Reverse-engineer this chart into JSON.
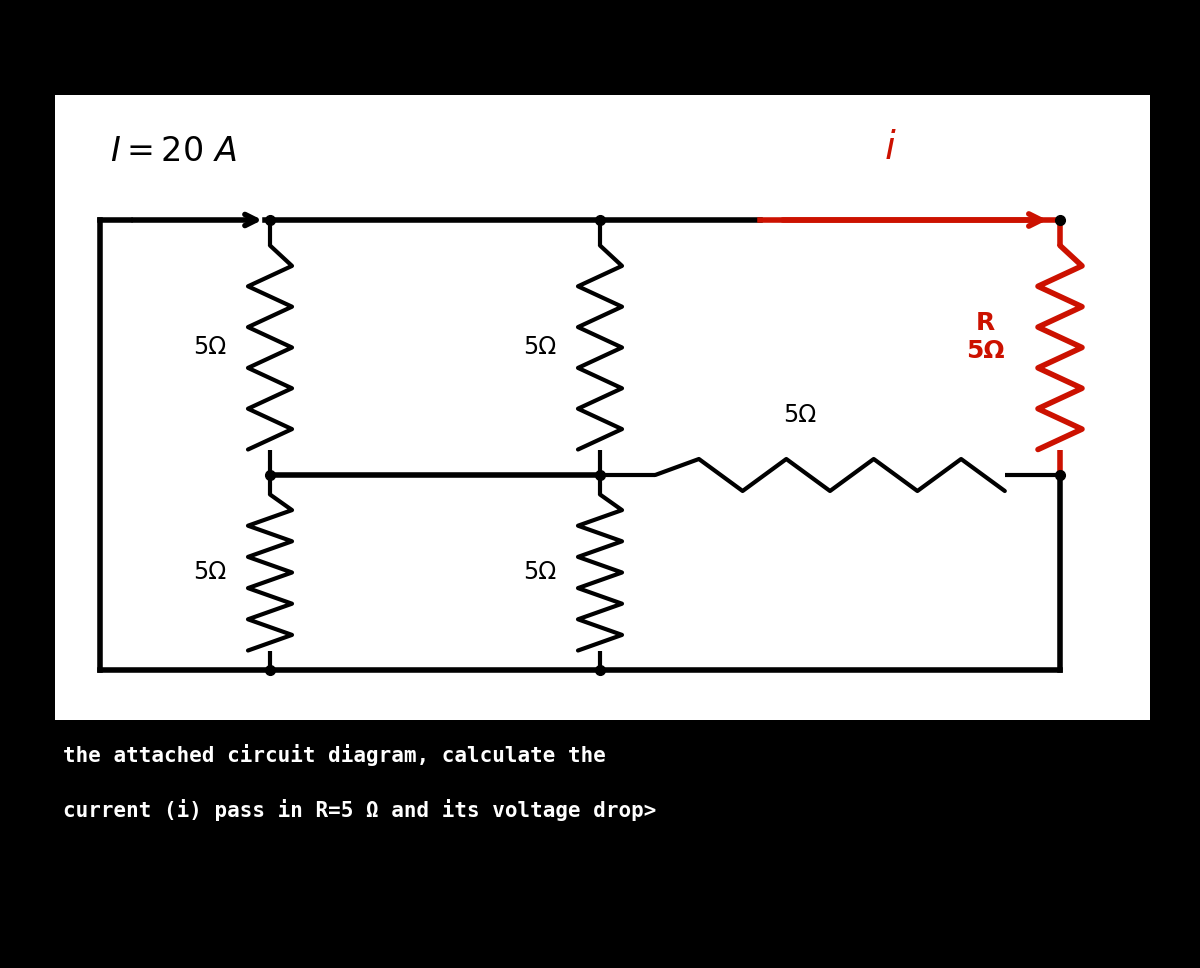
{
  "bg_color": "#000000",
  "circuit_bg": "#ffffff",
  "wire_color": "#000000",
  "resistor_color": "#000000",
  "red_color": "#cc1100",
  "text_color": "#000000",
  "label_I": "I=20 A",
  "label_i": "i",
  "resistor_label": "5Ω",
  "bottom_text1": "the attached circuit diagram, calculate the",
  "bottom_text2": "current (i) pass in R=5 Ω and its voltage drop>",
  "fig_width": 12.0,
  "fig_height": 9.68,
  "dpi": 100
}
